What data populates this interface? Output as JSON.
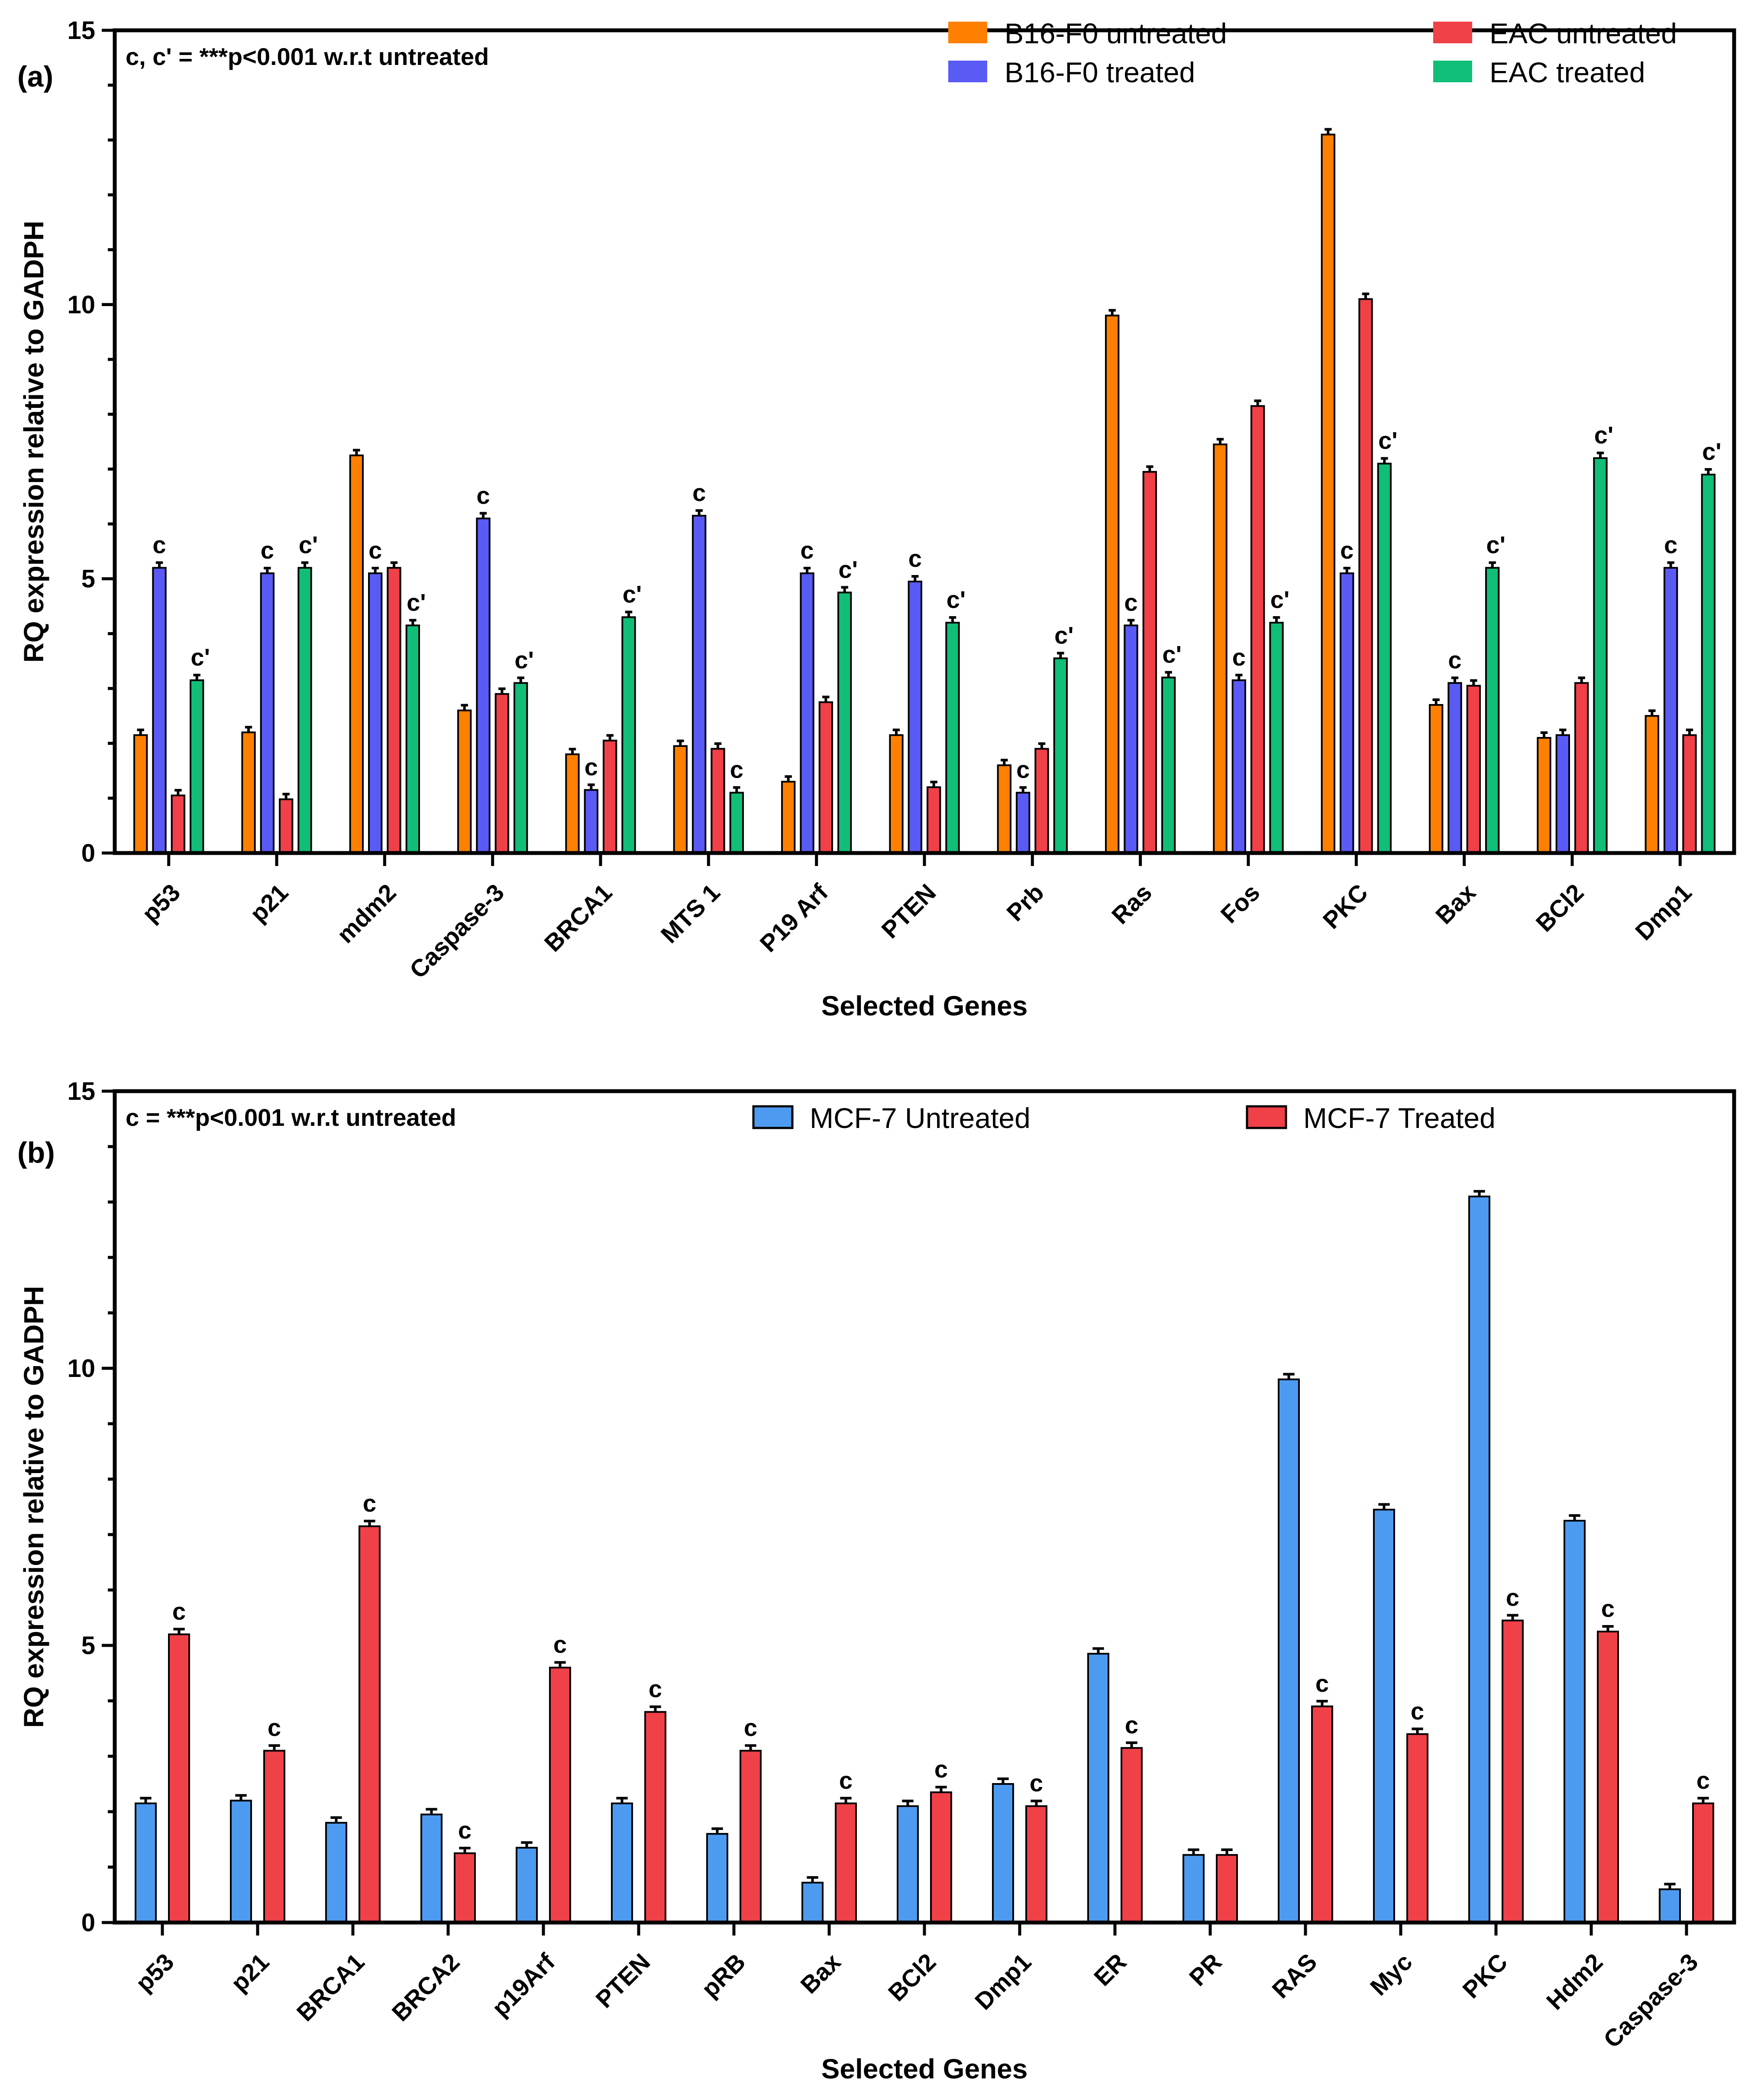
{
  "chart_data": [
    {
      "type": "bar",
      "panel_label": "(a)",
      "note": "c, c' = ***p<0.001 w.r.t untreated",
      "xlabel": "Selected Genes",
      "ylabel": "RQ expression relative to GADPH",
      "ylim": [
        0,
        15
      ],
      "yticks": [
        0,
        5,
        10,
        15
      ],
      "legend": [
        "B16-F0 untreated",
        "B16-F0 treated",
        "EAC untreated",
        "EAC treated"
      ],
      "categories": [
        "p53",
        "p21",
        "mdm2",
        "Caspase-3",
        "BRCA1",
        "MTS 1",
        "P19 Arf",
        "PTEN",
        "Prb",
        "Ras",
        "Fos",
        "PKC",
        "Bax",
        "BCl2",
        "Dmp1"
      ],
      "series": [
        {
          "name": "B16-F0 untreated",
          "color": "#FF8000",
          "values": [
            2.15,
            2.2,
            7.25,
            2.6,
            1.8,
            1.95,
            1.3,
            2.15,
            1.6,
            9.8,
            7.45,
            13.1,
            2.7,
            2.1,
            2.5
          ],
          "sig": [
            "",
            "",
            "",
            "",
            "",
            "",
            "",
            "",
            "",
            "",
            "",
            "",
            "",
            "",
            ""
          ]
        },
        {
          "name": "B16-F0 treated",
          "color": "#5A5AF5",
          "values": [
            5.2,
            5.1,
            5.1,
            6.1,
            1.15,
            6.15,
            5.1,
            4.95,
            1.1,
            4.15,
            3.15,
            5.1,
            3.1,
            2.15,
            5.2
          ],
          "sig": [
            "c",
            "c",
            "c",
            "c",
            "c",
            "c",
            "c",
            "c",
            "c",
            "c",
            "c",
            "c",
            "c",
            "",
            "c"
          ]
        },
        {
          "name": "EAC untreated",
          "color": "#F04048",
          "values": [
            1.05,
            0.98,
            5.2,
            2.9,
            2.05,
            1.9,
            2.75,
            1.2,
            1.9,
            6.95,
            8.15,
            10.1,
            3.05,
            3.1,
            2.15
          ],
          "sig": [
            "",
            "",
            "",
            "",
            "",
            "",
            "",
            "",
            "",
            "",
            "",
            "",
            "",
            "",
            ""
          ]
        },
        {
          "name": "EAC treated",
          "color": "#10BE78",
          "values": [
            3.15,
            5.2,
            4.15,
            3.1,
            4.3,
            1.1,
            4.75,
            4.2,
            3.55,
            3.2,
            4.2,
            7.1,
            5.2,
            7.2,
            6.9
          ],
          "sig": [
            "c'",
            "c'",
            "c'",
            "c'",
            "c'",
            "c",
            "c'",
            "c'",
            "c'",
            "c'",
            "c'",
            "c'",
            "c'",
            "c'",
            "c'"
          ]
        }
      ]
    },
    {
      "type": "bar",
      "panel_label": "(b)",
      "note": "c = ***p<0.001 w.r.t untreated",
      "xlabel": "Selected Genes",
      "ylabel": "RQ expression relative to GADPH",
      "ylim": [
        0,
        15
      ],
      "yticks": [
        0,
        5,
        10,
        15
      ],
      "legend": [
        "MCF-7 Untreated",
        "MCF-7 Treated"
      ],
      "categories": [
        "p53",
        "p21",
        "BRCA1",
        "BRCA2",
        "p19Arf",
        "PTEN",
        "pRB",
        "Bax",
        "BCl2",
        "Dmp1",
        "ER",
        "PR",
        "RAS",
        "Myc",
        "PKC",
        "Hdm2",
        "Caspase-3"
      ],
      "series": [
        {
          "name": "MCF-7 Untreated",
          "color": "#4D9BF0",
          "values": [
            2.15,
            2.2,
            1.8,
            1.95,
            1.35,
            2.15,
            1.6,
            0.72,
            2.1,
            2.5,
            4.85,
            1.22,
            9.8,
            7.45,
            13.1,
            7.25,
            0.6
          ],
          "sig": [
            "",
            "",
            "",
            "",
            "",
            "",
            "",
            "",
            "",
            "",
            "",
            "",
            "",
            "",
            "",
            "",
            ""
          ]
        },
        {
          "name": "MCF-7 Treated",
          "color": "#F04048",
          "values": [
            5.2,
            3.1,
            7.15,
            1.25,
            4.6,
            3.8,
            3.1,
            2.15,
            2.35,
            2.1,
            3.15,
            1.22,
            3.9,
            3.4,
            5.45,
            5.25,
            2.15
          ],
          "sig": [
            "c",
            "c",
            "c",
            "c",
            "c",
            "c",
            "c",
            "c",
            "c",
            "c",
            "c",
            "",
            "c",
            "c",
            "c",
            "c",
            "c"
          ]
        }
      ]
    }
  ]
}
